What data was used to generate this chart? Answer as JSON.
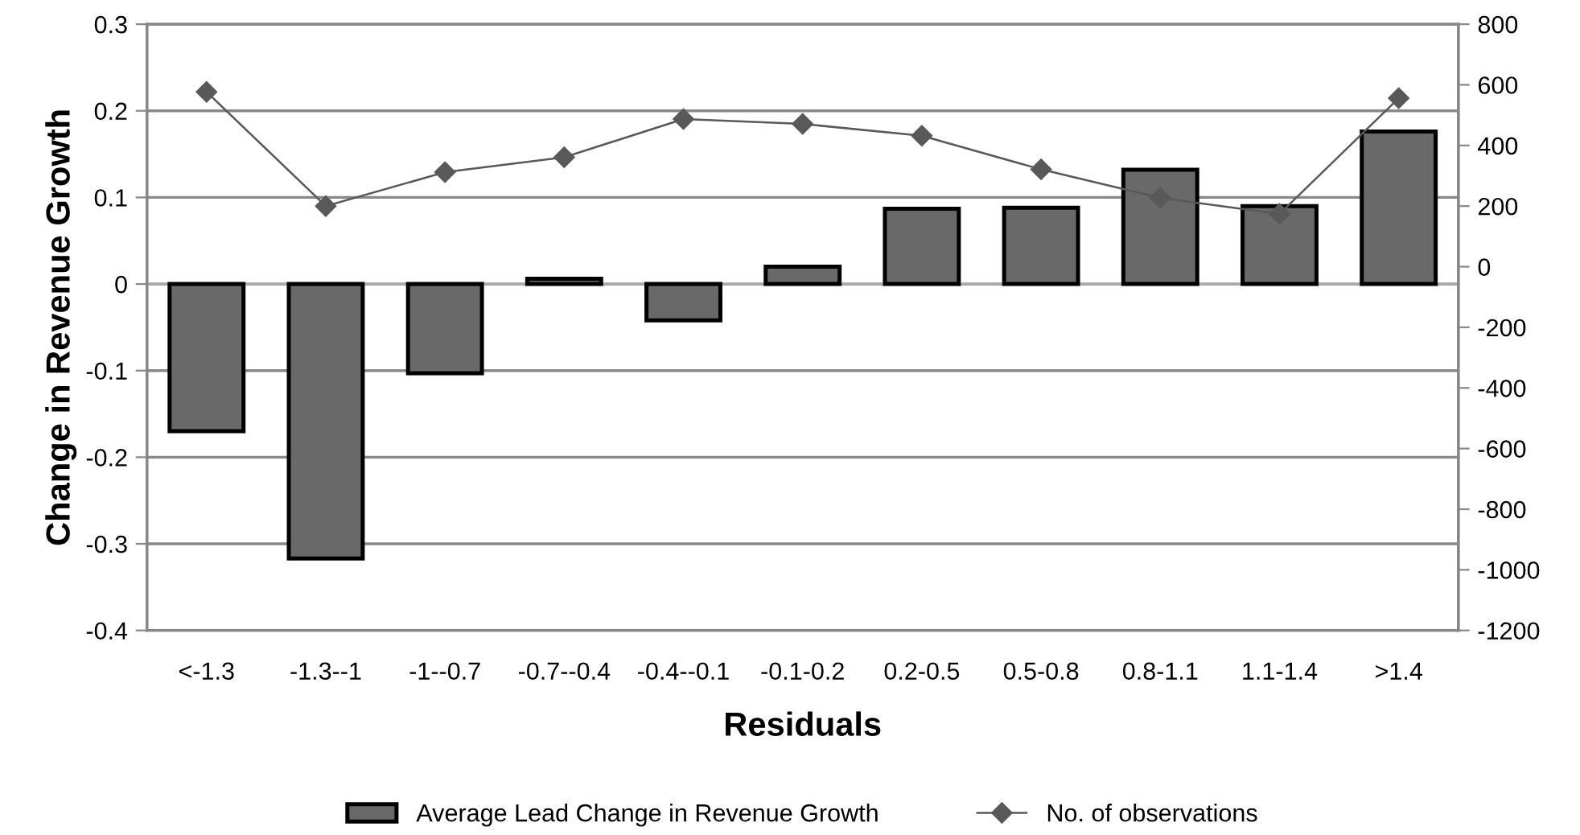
{
  "chart_data": {
    "type": "bar",
    "xlabel": "Residuals",
    "ylabel": "Change in Revenue Growth",
    "categories": [
      "<-1.3",
      "-1.3--1",
      "-1--0.7",
      "-0.7--0.4",
      "-0.4--0.1",
      "-0.1-0.2",
      "0.2-0.5",
      "0.5-0.8",
      "0.8-1.1",
      "1.1-1.4",
      ">1.4"
    ],
    "series": [
      {
        "name": "Average Lead Change in Revenue Growth",
        "color": "#696969",
        "values": [
          -0.17,
          -0.317,
          -0.103,
          0.006,
          -0.042,
          0.02,
          0.087,
          0.088,
          0.132,
          0.09,
          0.176
        ]
      },
      {
        "name": "No. of observations",
        "type": "line",
        "axis": "y2",
        "color": "#595959",
        "marker": "diamond",
        "values": [
          577,
          200,
          312,
          361,
          487,
          471,
          432,
          321,
          227,
          174,
          556
        ]
      }
    ],
    "ylim": [
      -0.4,
      0.3
    ],
    "yticks": [
      -0.4,
      -0.3,
      -0.2,
      -0.1,
      {
        "value": 0,
        "label": "0"
      },
      0.1,
      0.2,
      0.3
    ],
    "y2lim": [
      -1200,
      800
    ],
    "y2ticks": [
      -1200,
      -1000,
      -800,
      -600,
      -400,
      -200,
      0,
      200,
      400,
      600,
      800
    ],
    "grid": "y",
    "legend": "bottom"
  }
}
